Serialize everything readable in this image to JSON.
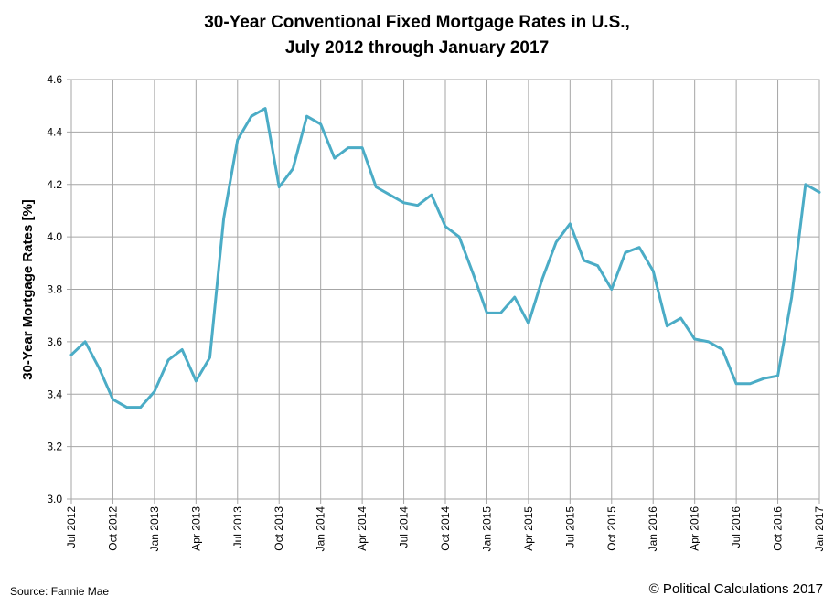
{
  "chart_data": {
    "type": "line",
    "title_line1": "30-Year Conventional Fixed Mortgage Rates in U.S.,",
    "title_line2": "July 2012 through January 2017",
    "ylabel": "30-Year Mortgage Rates [%]",
    "xlabel": "",
    "ylim": [
      3.0,
      4.6
    ],
    "yticks": [
      3.0,
      3.2,
      3.4,
      3.6,
      3.8,
      4.0,
      4.2,
      4.4,
      4.6
    ],
    "ytick_labels": [
      "3.0",
      "3.2",
      "3.4",
      "3.6",
      "3.8",
      "4.0",
      "4.2",
      "4.4",
      "4.6"
    ],
    "xtick_labels": [
      "Jul 2012",
      "Oct 2012",
      "Jan 2013",
      "Apr 2013",
      "Jul 2013",
      "Oct 2013",
      "Jan 2014",
      "Apr 2014",
      "Jul 2014",
      "Oct 2014",
      "Jan 2015",
      "Apr 2015",
      "Jul 2015",
      "Oct 2015",
      "Jan 2016",
      "Apr 2016",
      "Jul 2016",
      "Oct 2016",
      "Jan 2017"
    ],
    "grid": true,
    "color": "#4bacc6",
    "series": [
      {
        "name": "30-Year Mortgage Rate",
        "values": [
          3.55,
          3.6,
          3.5,
          3.38,
          3.35,
          3.35,
          3.41,
          3.53,
          3.57,
          3.45,
          3.54,
          4.07,
          4.37,
          4.46,
          4.49,
          4.19,
          4.26,
          4.46,
          4.43,
          4.3,
          4.34,
          4.34,
          4.19,
          4.16,
          4.13,
          4.12,
          4.16,
          4.04,
          4.0,
          3.86,
          3.71,
          3.71,
          3.77,
          3.67,
          3.84,
          3.98,
          4.05,
          3.91,
          3.89,
          3.8,
          3.94,
          3.96,
          3.87,
          3.66,
          3.69,
          3.61,
          3.6,
          3.57,
          3.44,
          3.44,
          3.46,
          3.47,
          3.77,
          4.2,
          4.17
        ]
      }
    ]
  },
  "footer": {
    "source": "Source: Fannie Mae",
    "copyright": "© Political Calculations 2017"
  }
}
